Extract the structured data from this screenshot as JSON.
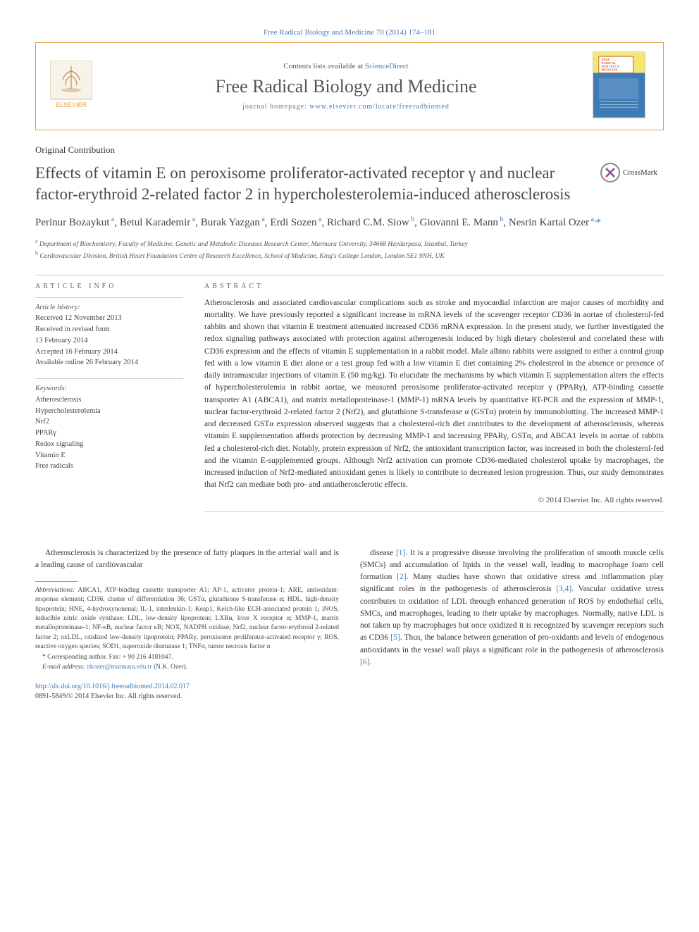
{
  "top_link": "Free Radical Biology and Medicine 70 (2014) 174–181",
  "header": {
    "contents_text": "Contents lists available at ",
    "contents_link": "ScienceDirect",
    "journal_name": "Free Radical Biology and Medicine",
    "homepage_label": "journal homepage: ",
    "homepage_url": "www.elsevier.com/locate/freeradbiomed"
  },
  "article_type": "Original Contribution",
  "title": "Effects of vitamin E on peroxisome proliferator-activated receptor γ and nuclear factor-erythroid 2-related factor 2 in hypercholesterolemia-induced atherosclerosis",
  "crossmark": "CrossMark",
  "authors_html": "Perinur Bozaykut<sup> a</sup>, Betul Karademir<sup> a</sup>, Burak Yazgan<sup> a</sup>, Erdi Sozen<sup> a</sup>, Richard C.M. Siow<sup> b</sup>, Giovanni E. Mann<sup> b</sup>, Nesrin Kartal Ozer<sup> a,</sup><span class='star'>*</span>",
  "affiliations": {
    "a": "Department of Biochemistry, Faculty of Medicine, Genetic and Metabolic Diseases Research Center, Marmara University, 34668 Haydarpasa, Istanbul, Turkey",
    "b": "Cardiovascular Division, British Heart Foundation Centre of Research Excellence, School of Medicine, King's College London, London SE1 9NH, UK"
  },
  "info": {
    "label": "ARTICLE INFO",
    "history_label": "Article history:",
    "history": [
      "Received 12 November 2013",
      "Received in revised form",
      "13 February 2014",
      "Accepted 16 February 2014",
      "Available online 26 February 2014"
    ],
    "keywords_label": "Keywords:",
    "keywords": [
      "Atherosclerosis",
      "Hypercholesterolemia",
      "Nrf2",
      "PPARγ",
      "Redox signaling",
      "Vitamin E",
      "Free radicals"
    ]
  },
  "abstract": {
    "label": "ABSTRACT",
    "text": "Atherosclerosis and associated cardiovascular complications such as stroke and myocardial infarction are major causes of morbidity and mortality. We have previously reported a significant increase in mRNA levels of the scavenger receptor CD36 in aortae of cholesterol-fed rabbits and shown that vitamin E treatment attenuated increased CD36 mRNA expression. In the present study, we further investigated the redox signaling pathways associated with protection against atherogenesis induced by high dietary cholesterol and correlated these with CD36 expression and the effects of vitamin E supplementation in a rabbit model. Male albino rabbits were assigned to either a control group fed with a low vitamin E diet alone or a test group fed with a low vitamin E diet containing 2% cholesterol in the absence or presence of daily intramuscular injections of vitamin E (50 mg/kg). To elucidate the mechanisms by which vitamin E supplementation alters the effects of hypercholesterolemia in rabbit aortae, we measured peroxisome proliferator-activated receptor γ (PPARγ), ATP-binding cassette transporter A1 (ABCA1), and matrix metalloproteinase-1 (MMP-1) mRNA levels by quantitative RT-PCR and the expression of MMP-1, nuclear factor-erythroid 2-related factor 2 (Nrf2), and glutathione S-transferase α (GSTα) protein by immunoblotting. The increased MMP-1 and decreased GSTα expression observed suggests that a cholesterol-rich diet contributes to the development of atherosclerosis, whereas vitamin E supplementation affords protection by decreasing MMP-1 and increasing PPARγ, GSTα, and ABCA1 levels in aortae of rabbits fed a cholesterol-rich diet. Notably, protein expression of Nrf2, the antioxidant transcription factor, was increased in both the cholesterol-fed and the vitamin E-supplemented groups. Although Nrf2 activation can promote CD36-mediated cholesterol uptake by macrophages, the increased induction of Nrf2-mediated antioxidant genes is likely to contribute to decreased lesion progression. Thus, our study demonstrates that Nrf2 can mediate both pro- and antiatherosclerotic effects.",
    "copyright": "© 2014 Elsevier Inc. All rights reserved."
  },
  "body": {
    "left_intro": "Atherosclerosis is characterized by the presence of fatty plaques in the arterial wall and is a leading cause of cardiovascular",
    "right_para": "disease <span class='ref-link'>[1]</span>. It is a progressive disease involving the proliferation of smooth muscle cells (SMCs) and accumulation of lipids in the vessel wall, leading to macrophage foam cell formation <span class='ref-link'>[2]</span>. Many studies have shown that oxidative stress and inflammation play significant roles in the pathogenesis of atherosclerosis <span class='ref-link'>[3,4]</span>. Vascular oxidative stress contributes to oxidation of LDL through enhanced generation of ROS by endothelial cells, SMCs, and macrophages, leading to their uptake by macrophages. Normally, native LDL is not taken up by macrophages but once oxidized it is recognized by scavenger receptors such as CD36 <span class='ref-link'>[5]</span>. Thus, the balance between generation of pro-oxidants and levels of endogenous antioxidants in the vessel wall plays a significant role in the pathogenesis of atherosclerosis <span class='ref-link'>[6]</span>."
  },
  "footnotes": {
    "abbrev_label": "Abbreviations:",
    "abbrev_text": " ABCA1, ATP-binding cassette transporter A1; AP-1, activator protein-1; ARE, antioxidant-response element; CD36, cluster of differentiation 36; GSTα, glutathione S-transferase α; HDL, high-density lipoprotein; HNE, 4-hydroxynonenal; IL-1, interleukin-1; Keap1, Kelch-like ECH-associated protein 1; iNOS, inducible nitric oxide synthase; LDL, low-density lipoprotein; LXRα, liver X receptor α; MMP-1, matrix metalloproteinase-1; NF-κB, nuclear factor κB; NOX, NADPH oxidase; Nrf2, nuclear factor-erythroid 2-related factor 2; oxLDL, oxidized low-density lipoprotein; PPARγ, peroxisome proliferator-activated receptor γ; ROS, reactive oxygen species; SOD1, superoxide dismutase 1; TNFα, tumor necrosis factor α",
    "corr": "* Corresponding author. Fax: + 90 216 4181047.",
    "email_label": "E-mail address: ",
    "email": "nkozer@marmara.edu.tr",
    "email_person": " (N.K. Ozer)."
  },
  "bottom": {
    "doi": "http://dx.doi.org/10.1016/j.freeradbiomed.2014.02.017",
    "issn": "0891-5849/© 2014 Elsevier Inc. All rights reserved."
  },
  "colors": {
    "link": "#3f7cb5",
    "border": "#e0a040",
    "text": "#333333",
    "muted": "#666666"
  },
  "elsevier_logo": {
    "bg": "#f8f3e8",
    "tree": "#e0a040",
    "text": "ELSEVIER"
  },
  "cover": {
    "top_bg": "#f5e670",
    "bottom_bg": "#3f7cb5",
    "label1": "FREE",
    "label2": "RADICAL",
    "label3": "BIOLOGY &",
    "label4": "MEDICINE"
  }
}
